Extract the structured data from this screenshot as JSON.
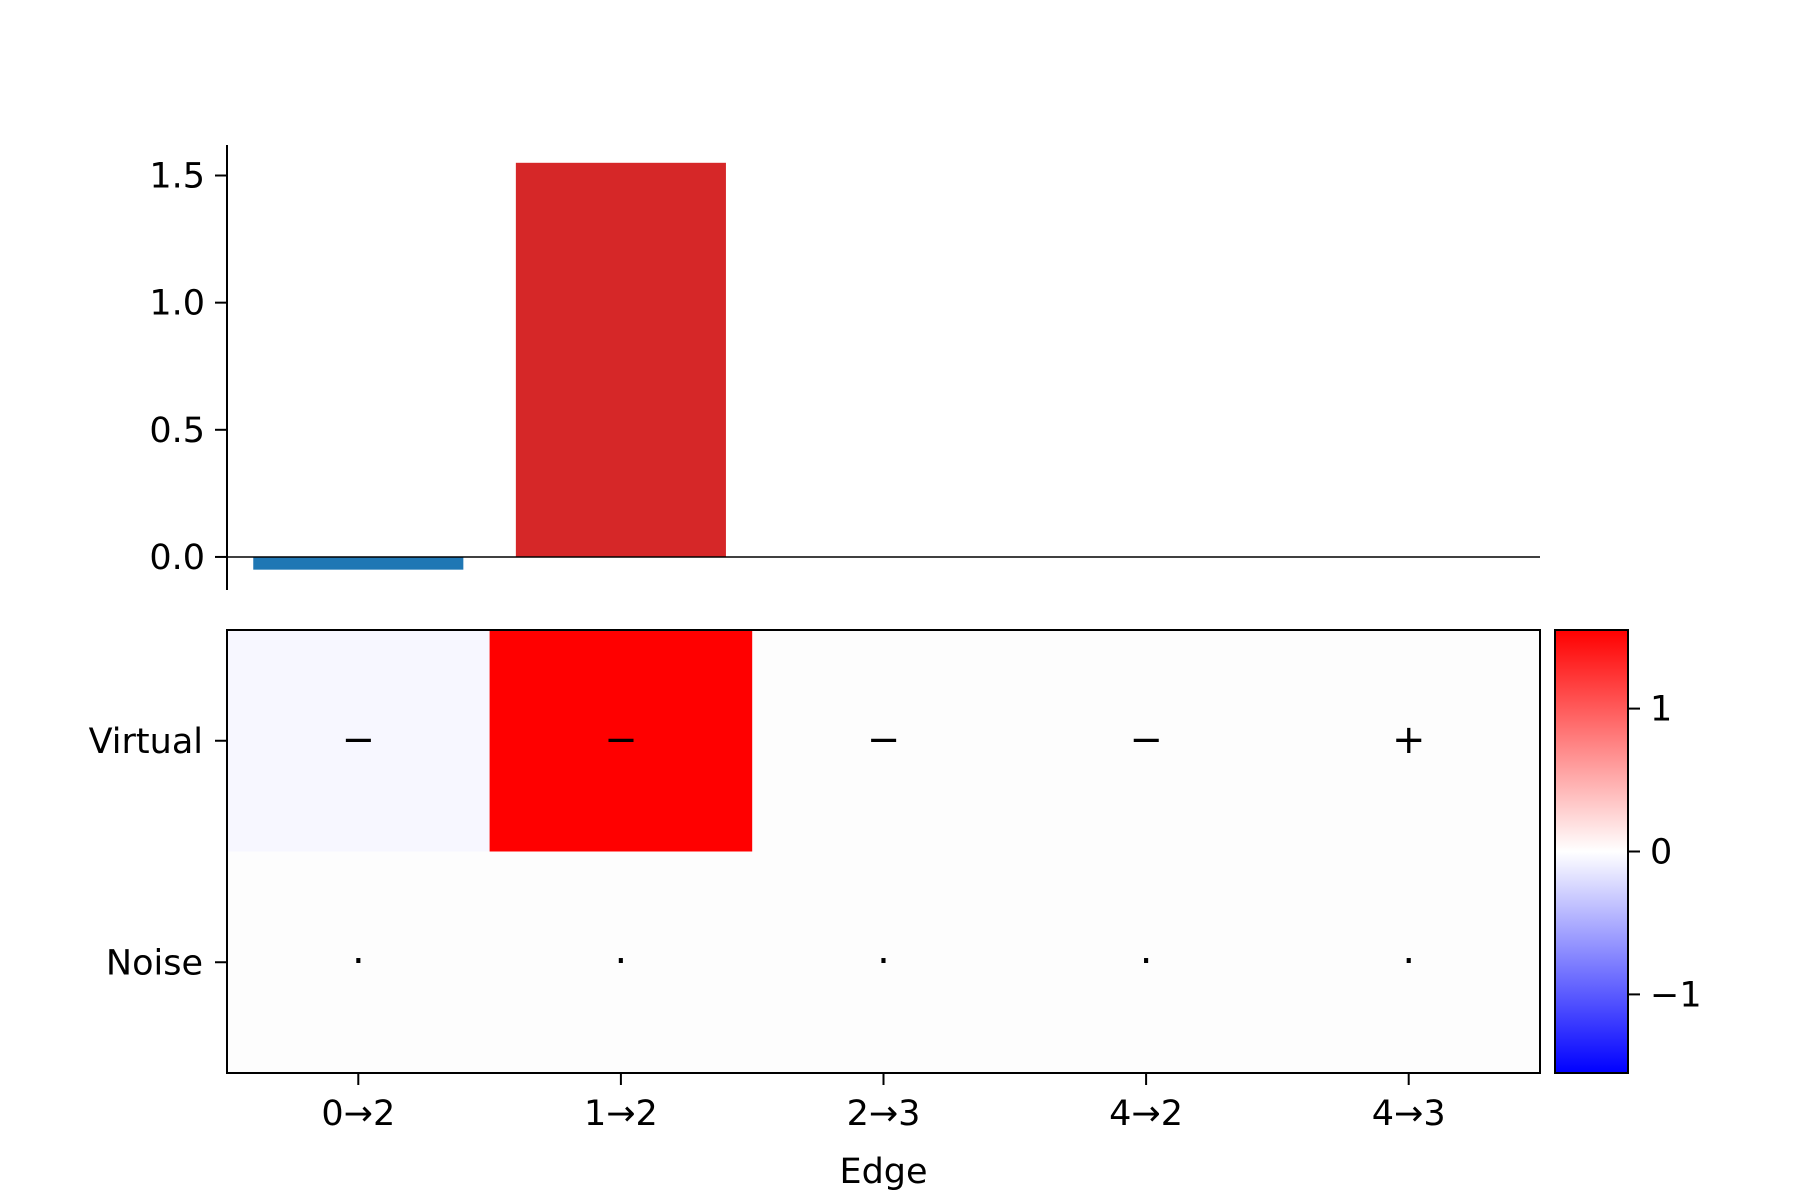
{
  "chart_data": [
    {
      "type": "bar",
      "categories": [
        "0→2",
        "1→2",
        "2→3",
        "4→2",
        "4→3"
      ],
      "values": [
        -0.05,
        1.55,
        0,
        0,
        0
      ],
      "colors": [
        "#1f77b4",
        "#d62728",
        "#d62728",
        "#d62728",
        "#d62728"
      ],
      "ylim": [
        -0.13,
        1.62
      ],
      "yticks": [
        0.0,
        0.5,
        1.0,
        1.5
      ],
      "ytick_labels": [
        "0.0",
        "0.5",
        "1.0",
        "1.5"
      ],
      "zero_line": true,
      "xlabel": "",
      "ylabel": ""
    },
    {
      "type": "heatmap",
      "rows": [
        "Virtual",
        "Noise"
      ],
      "columns": [
        "0→2",
        "1→2",
        "2→3",
        "4→2",
        "4→3"
      ],
      "values": [
        [
          -0.05,
          1.55,
          0,
          0,
          0
        ],
        [
          0,
          0,
          0,
          0,
          0
        ]
      ],
      "annotations": [
        [
          "−",
          "−",
          "−",
          "−",
          "+"
        ],
        [
          "·",
          "·",
          "·",
          "·",
          "·"
        ]
      ],
      "xlabel": "Edge",
      "ylabel": "",
      "colormap": "bwr",
      "vmin": -1.55,
      "vmax": 1.55,
      "colorbar": {
        "ticks": [
          1,
          0,
          -1
        ],
        "tick_labels": [
          "1",
          "0",
          "−1"
        ],
        "colors": {
          "low": "#0000ff",
          "mid": "#ffffff",
          "high": "#ff0000"
        }
      }
    }
  ]
}
